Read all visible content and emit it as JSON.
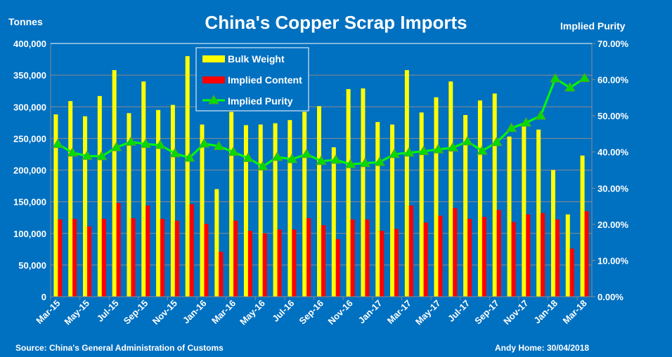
{
  "chart_data": {
    "type": "bar",
    "title": "China's Copper Scrap Imports",
    "ylabel": "Tonnes",
    "y2label": "Implied Purity",
    "ylim": [
      0,
      400000
    ],
    "y2lim": [
      0,
      70
    ],
    "yticks": [
      "0",
      "50,000",
      "100,000",
      "150,000",
      "200,000",
      "250,000",
      "300,000",
      "350,000",
      "400,000"
    ],
    "y2ticks": [
      "0.00%",
      "10.00%",
      "20.00%",
      "30.00%",
      "40.00%",
      "50.00%",
      "60.00%",
      "70.00%"
    ],
    "legend_position": "top-center",
    "categories": [
      "Mar-15",
      "Apr-15",
      "May-15",
      "Jun-15",
      "Jul-15",
      "Aug-15",
      "Sep-15",
      "Oct-15",
      "Nov-15",
      "Dec-15",
      "Jan-16",
      "Feb-16",
      "Mar-16",
      "Apr-16",
      "May-16",
      "Jun-16",
      "Jul-16",
      "Aug-16",
      "Sep-16",
      "Oct-16",
      "Nov-16",
      "Dec-16",
      "Jan-17",
      "Feb-17",
      "Mar-17",
      "Apr-17",
      "May-17",
      "Jun-17",
      "Jul-17",
      "Aug-17",
      "Sep-17",
      "Oct-17",
      "Nov-17",
      "Dec-17",
      "Jan-18",
      "Feb-18",
      "Mar-18"
    ],
    "xtick_labels_shown_every": 2,
    "series": [
      {
        "name": "Bulk Weight",
        "type": "bar",
        "color": "#FFFF00",
        "values": [
          288000,
          309000,
          285000,
          317000,
          358000,
          290000,
          340000,
          295000,
          303000,
          380000,
          272000,
          170000,
          292000,
          271000,
          272000,
          274000,
          279000,
          292000,
          301000,
          236000,
          328000,
          329000,
          276000,
          272000,
          358000,
          291000,
          315000,
          340000,
          287000,
          310000,
          321000,
          253000,
          270000,
          264000,
          200000,
          130000,
          223000
        ]
      },
      {
        "name": "Implied Content",
        "type": "bar",
        "color": "#FF0000",
        "values": [
          122000,
          123000,
          111000,
          123000,
          148000,
          124000,
          144000,
          123000,
          120000,
          146000,
          115000,
          71000,
          120000,
          104000,
          100000,
          106000,
          106000,
          124000,
          113000,
          91000,
          122000,
          122000,
          104000,
          107000,
          144000,
          117000,
          128000,
          140000,
          123000,
          126000,
          137000,
          118000,
          130000,
          132000,
          122000,
          76000,
          135000
        ]
      },
      {
        "name": "Implied Purity",
        "type": "line",
        "axis": "right",
        "color": "#00FF00",
        "values": [
          42.2,
          39.8,
          38.9,
          38.8,
          41.3,
          42.8,
          42.2,
          41.9,
          39.6,
          38.4,
          42.3,
          41.6,
          40.0,
          38.3,
          36.0,
          38.6,
          38.0,
          39.4,
          37.5,
          37.8,
          36.6,
          36.9,
          37.2,
          39.4,
          39.8,
          40.2,
          40.7,
          41.2,
          42.9,
          40.3,
          42.7,
          46.6,
          48.1,
          50.0,
          60.3,
          57.8,
          60.4
        ]
      }
    ],
    "source": "Source: China's General Administration  of Customs",
    "credit": "Andy Home: 30/04/2018"
  }
}
